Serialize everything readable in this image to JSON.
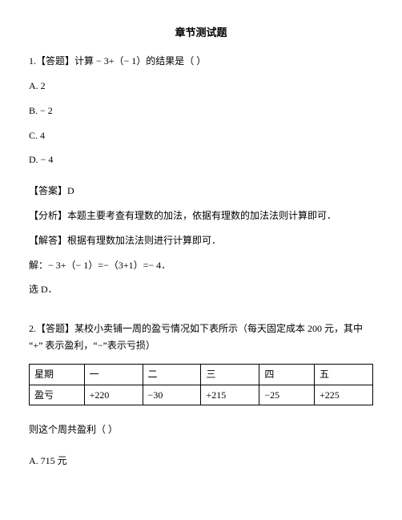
{
  "title": "章节测试题",
  "q1": {
    "stem": "1.【答题】计算 − 3+（− 1）的结果是（        ）",
    "optA": "A.  2",
    "optB": "B.  − 2",
    "optC": "C.  4",
    "optD": "D.  − 4",
    "answer": "【答案】D",
    "analysis": "【分析】本题主要考查有理数的加法，依据有理数的加法法则计算即可．",
    "solve1": "【解答】根据有理数加法法则进行计算即可．",
    "solve2": "解：− 3+（− 1）=−（3+1）=− 4．",
    "solve3": "选 D．"
  },
  "q2": {
    "stem1": "2.【答题】某校小卖铺一周的盈亏情况如下表所示（每天固定成本 200 元，其中",
    "stem2": "“+” 表示盈利，“−”表示亏损）",
    "table": {
      "header": [
        "星期",
        "一",
        "二",
        "三",
        "四",
        "五"
      ],
      "row": [
        "盈亏",
        "+220",
        "−30",
        "+215",
        "−25",
        "+225"
      ],
      "col_widths": [
        "16%",
        "17%",
        "17%",
        "17%",
        "16%",
        "17%"
      ]
    },
    "tail": "则这个周共盈利（        ）",
    "optA": "A.  715 元"
  }
}
